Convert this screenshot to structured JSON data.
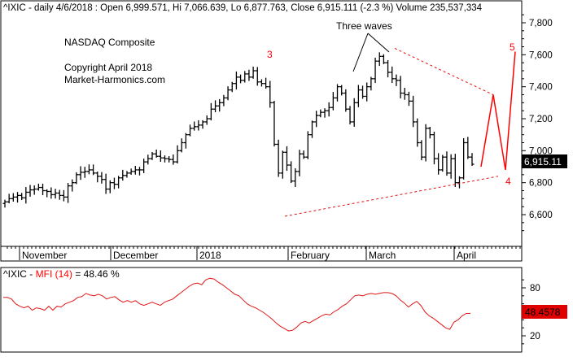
{
  "header": {
    "text": "^IXIC - daily 4/6/2018 : Open 6,999.571, Hi 7,066.639, Lo 6,877.763, Close 6,915.111 (-2.3 %) Volume 235,537,334"
  },
  "annotations": {
    "index_name": "NASDAQ Composite",
    "copyright": "Copyright April 2018",
    "site": "Market-Harmonics.com",
    "three_waves": "Three waves",
    "wave3": "3",
    "wave4": "4",
    "wave5": "5"
  },
  "price_badge": "6,915.11",
  "colors": {
    "price_bars": "#000000",
    "projection": "#ff0000",
    "trendline": "#ff0000",
    "wave_label": "#ff0000",
    "mfi_line": "#ff0000",
    "badge_bg": "#000000",
    "mfi_badge_bg": "#ff0000"
  },
  "chart_data": [
    {
      "type": "ohlc",
      "x_labels": [
        "November",
        "December",
        "2018",
        "February",
        "March",
        "April"
      ],
      "y_ticks": [
        "6,600",
        "6,800",
        "7,000",
        "7,200",
        "7,400",
        "7,600",
        "7,800"
      ],
      "ylim": [
        6500,
        7850
      ],
      "last_close": 6915.11,
      "close_series": [
        6680,
        6700,
        6710,
        6720,
        6705,
        6740,
        6755,
        6760,
        6770,
        6750,
        6745,
        6725,
        6735,
        6720,
        6710,
        6780,
        6800,
        6850,
        6865,
        6870,
        6880,
        6860,
        6840,
        6820,
        6760,
        6800,
        6790,
        6830,
        6845,
        6860,
        6870,
        6880,
        6880,
        6930,
        6950,
        6980,
        6965,
        6955,
        6950,
        6945,
        6930,
        7000,
        7050,
        7100,
        7140,
        7150,
        7160,
        7180,
        7200,
        7260,
        7280,
        7300,
        7330,
        7380,
        7420,
        7460,
        7440,
        7480,
        7460,
        7500,
        7430,
        7420,
        7400,
        7300,
        7040,
        6860,
        6990,
        6910,
        6810,
        6870,
        6980,
        6960,
        7100,
        7180,
        7220,
        7240,
        7250,
        7270,
        7330,
        7400,
        7360,
        7260,
        7180,
        7300,
        7380,
        7340,
        7400,
        7450,
        7560,
        7590,
        7550,
        7490,
        7450,
        7440,
        7360,
        7350,
        7310,
        7180,
        7050,
        6960,
        7140,
        7100,
        6950,
        6880,
        6960,
        6860,
        6950,
        6800,
        6830,
        7050,
        6960,
        6915
      ],
      "upper_trendline": [
        [
          7640,
          7640
        ],
        [
          7350,
          7350
        ]
      ],
      "lower_trendline": [
        6590,
        6840
      ],
      "projection": [
        6900,
        7350,
        6880,
        7620
      ]
    },
    {
      "type": "line",
      "title_symbol": "^IXIC",
      "title_sep": " - ",
      "series_label": "MFI (14)",
      "title_value": " = 48.46 %",
      "y_ticks": [
        "80",
        "50",
        "20"
      ],
      "ylim": [
        0,
        100
      ],
      "current_value": "48.4578",
      "values": [
        68,
        68,
        66,
        60,
        57,
        55,
        57,
        52,
        55,
        54,
        52,
        57,
        52,
        57,
        56,
        60,
        62,
        64,
        68,
        69,
        73,
        71,
        70,
        72,
        70,
        66,
        68,
        69,
        65,
        62,
        64,
        62,
        64,
        60,
        58,
        60,
        62,
        60,
        58,
        62,
        64,
        66,
        70,
        74,
        78,
        82,
        85,
        86,
        84,
        90,
        92,
        91,
        87,
        84,
        80,
        76,
        72,
        70,
        65,
        60,
        57,
        55,
        52,
        49,
        45,
        41,
        36,
        32,
        29,
        26,
        27,
        31,
        36,
        38,
        36,
        39,
        42,
        45,
        47,
        46,
        50,
        53,
        57,
        60,
        65,
        70,
        71,
        70,
        72,
        73,
        72,
        73,
        74,
        74,
        73,
        70,
        65,
        61,
        56,
        60,
        63,
        58,
        50,
        45,
        42,
        38,
        34,
        30,
        28,
        37,
        40,
        45,
        48,
        48
      ]
    }
  ]
}
